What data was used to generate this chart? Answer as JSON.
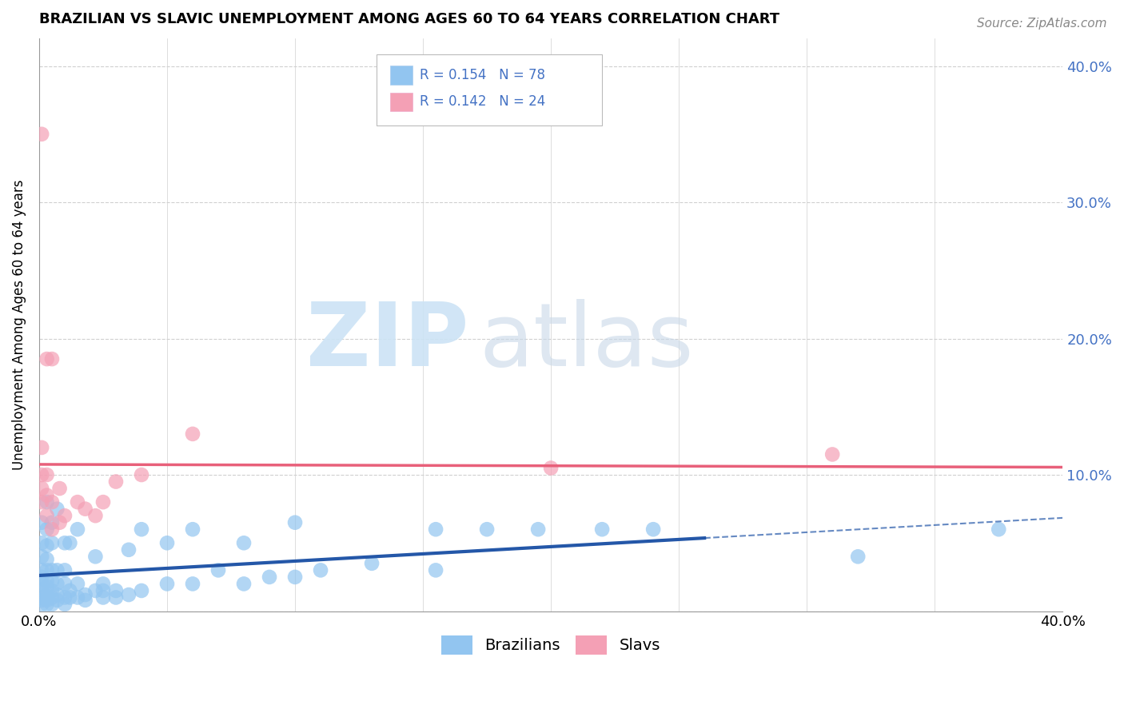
{
  "title": "BRAZILIAN VS SLAVIC UNEMPLOYMENT AMONG AGES 60 TO 64 YEARS CORRELATION CHART",
  "source": "Source: ZipAtlas.com",
  "ylabel": "Unemployment Among Ages 60 to 64 years",
  "xlim": [
    0.0,
    0.4
  ],
  "ylim": [
    0.0,
    0.42
  ],
  "legend_text_color": "#4472c4",
  "brazilian_color": "#92c5f0",
  "slavic_color": "#f4a0b5",
  "trend_brazilian_color": "#2457a8",
  "trend_slavic_color": "#e8607a",
  "background_color": "#ffffff",
  "grid_color": "#d0d0d0",
  "right_tick_color": "#4472c4",
  "brazilians_x": [
    0.001,
    0.001,
    0.001,
    0.001,
    0.001,
    0.001,
    0.001,
    0.001,
    0.001,
    0.001,
    0.003,
    0.003,
    0.003,
    0.003,
    0.003,
    0.003,
    0.003,
    0.003,
    0.003,
    0.003,
    0.005,
    0.005,
    0.005,
    0.005,
    0.005,
    0.005,
    0.005,
    0.007,
    0.007,
    0.007,
    0.007,
    0.007,
    0.01,
    0.01,
    0.01,
    0.01,
    0.01,
    0.012,
    0.012,
    0.012,
    0.015,
    0.015,
    0.015,
    0.018,
    0.018,
    0.022,
    0.022,
    0.025,
    0.025,
    0.025,
    0.03,
    0.03,
    0.035,
    0.035,
    0.04,
    0.04,
    0.05,
    0.05,
    0.06,
    0.06,
    0.07,
    0.08,
    0.08,
    0.09,
    0.1,
    0.1,
    0.11,
    0.13,
    0.155,
    0.155,
    0.175,
    0.195,
    0.22,
    0.24,
    0.32,
    0.375
  ],
  "brazilians_y": [
    0.005,
    0.008,
    0.01,
    0.015,
    0.02,
    0.025,
    0.03,
    0.04,
    0.05,
    0.065,
    0.005,
    0.008,
    0.012,
    0.018,
    0.022,
    0.03,
    0.038,
    0.048,
    0.06,
    0.08,
    0.005,
    0.01,
    0.015,
    0.022,
    0.03,
    0.05,
    0.065,
    0.008,
    0.012,
    0.02,
    0.03,
    0.075,
    0.005,
    0.01,
    0.02,
    0.03,
    0.05,
    0.01,
    0.015,
    0.05,
    0.01,
    0.02,
    0.06,
    0.008,
    0.012,
    0.015,
    0.04,
    0.01,
    0.015,
    0.02,
    0.01,
    0.015,
    0.012,
    0.045,
    0.015,
    0.06,
    0.02,
    0.05,
    0.02,
    0.06,
    0.03,
    0.02,
    0.05,
    0.025,
    0.025,
    0.065,
    0.03,
    0.035,
    0.03,
    0.06,
    0.06,
    0.06,
    0.06,
    0.06,
    0.04,
    0.06
  ],
  "slavs_x": [
    0.001,
    0.001,
    0.001,
    0.001,
    0.001,
    0.003,
    0.003,
    0.003,
    0.003,
    0.005,
    0.005,
    0.005,
    0.008,
    0.008,
    0.01,
    0.015,
    0.018,
    0.022,
    0.025,
    0.03,
    0.04,
    0.06,
    0.2,
    0.31
  ],
  "slavs_y": [
    0.08,
    0.09,
    0.1,
    0.12,
    0.35,
    0.07,
    0.085,
    0.1,
    0.185,
    0.06,
    0.08,
    0.185,
    0.065,
    0.09,
    0.07,
    0.08,
    0.075,
    0.07,
    0.08,
    0.095,
    0.1,
    0.13,
    0.105,
    0.115
  ]
}
